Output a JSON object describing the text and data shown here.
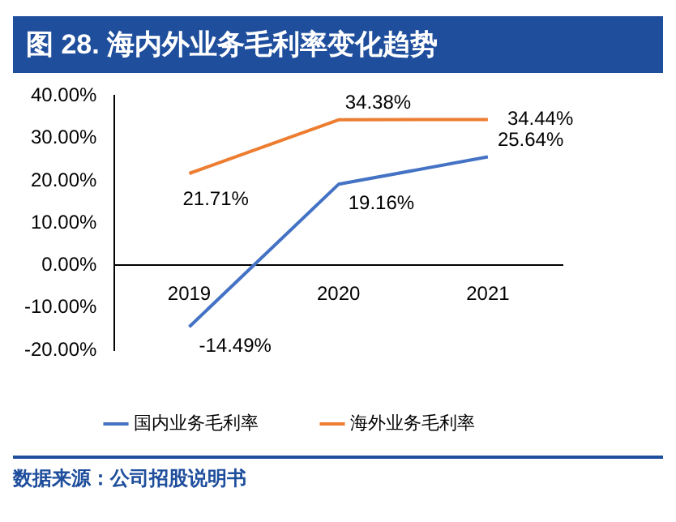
{
  "chart_data": {
    "type": "line",
    "title": "图 28. 海内外业务毛利率变化趋势",
    "categories": [
      "2019",
      "2020",
      "2021"
    ],
    "series": [
      {
        "name": "国内业务毛利率",
        "color": "#4472c4",
        "values": [
          -14.49,
          19.16,
          25.64
        ],
        "value_labels": [
          "-14.49%",
          "19.16%",
          "25.64%"
        ]
      },
      {
        "name": "海外业务毛利率",
        "color": "#ed7d31",
        "values": [
          21.71,
          34.38,
          34.44
        ],
        "value_labels": [
          "21.71%",
          "34.38%",
          "34.44%"
        ]
      }
    ],
    "ylim": [
      -20,
      40
    ],
    "yticks": [
      {
        "value": -20,
        "label": "-20.00%"
      },
      {
        "value": -10,
        "label": "-10.00%"
      },
      {
        "value": 0,
        "label": "0.00%"
      },
      {
        "value": 10,
        "label": "10.00%"
      },
      {
        "value": 20,
        "label": "20.00%"
      },
      {
        "value": 30,
        "label": "30.00%"
      },
      {
        "value": 40,
        "label": "40.00%"
      }
    ],
    "grid": false,
    "legend": "bottom",
    "marker": "none",
    "line_style": "solid",
    "annotations": [
      "数据来源：公司招股说明书"
    ]
  }
}
